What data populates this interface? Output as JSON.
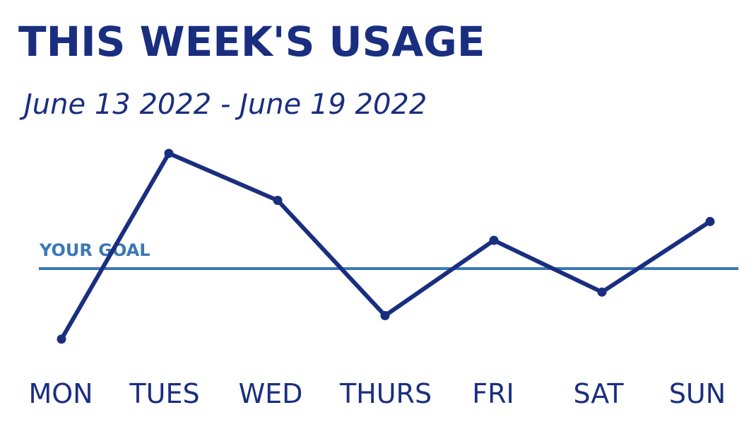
{
  "header": {
    "title": "THIS WEEK'S USAGE",
    "subtitle": "June 13 2022 - June 19 2022"
  },
  "colors": {
    "line": "#1a2e80",
    "goal": "#3a78b5",
    "text": "#1a2e80"
  },
  "chart_data": {
    "type": "line",
    "title": "THIS WEEK'S USAGE",
    "subtitle": "June 13 2022 - June 19 2022",
    "categories": [
      "MON",
      "TUES",
      "WED",
      "THURS",
      "FRI",
      "SAT",
      "SUN"
    ],
    "values": [
      1.0,
      8.9,
      6.9,
      2.0,
      5.2,
      3.0,
      6.0
    ],
    "ylim": [
      0,
      9.5
    ],
    "xlabel": "",
    "ylabel": "",
    "grid": false,
    "goal": {
      "label": "YOUR GOAL",
      "value": 4.0
    }
  }
}
